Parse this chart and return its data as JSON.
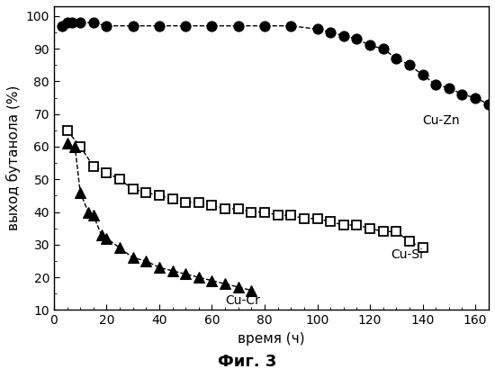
{
  "cu_zn_x": [
    3,
    5,
    7,
    10,
    15,
    20,
    30,
    40,
    50,
    60,
    70,
    80,
    90,
    100,
    105,
    110,
    115,
    120,
    125,
    130,
    135,
    140,
    145,
    150,
    155,
    160,
    165
  ],
  "cu_zn_y": [
    97,
    98,
    98,
    98,
    98,
    97,
    97,
    97,
    97,
    97,
    97,
    97,
    97,
    96,
    95,
    94,
    93,
    91,
    90,
    87,
    85,
    82,
    79,
    78,
    76,
    75,
    73
  ],
  "cu_si_x": [
    5,
    10,
    15,
    20,
    25,
    30,
    35,
    40,
    45,
    50,
    55,
    60,
    65,
    70,
    75,
    80,
    85,
    90,
    95,
    100,
    105,
    110,
    115,
    120,
    125,
    130,
    135,
    140
  ],
  "cu_si_y": [
    65,
    60,
    54,
    52,
    50,
    47,
    46,
    45,
    44,
    43,
    43,
    42,
    41,
    41,
    40,
    40,
    39,
    39,
    38,
    38,
    37,
    36,
    36,
    35,
    34,
    34,
    31,
    29
  ],
  "cu_cr_x": [
    5,
    8,
    10,
    13,
    15,
    18,
    20,
    25,
    30,
    35,
    40,
    45,
    50,
    55,
    60,
    65,
    70,
    75
  ],
  "cu_cr_y": [
    61,
    60,
    46,
    40,
    39,
    33,
    32,
    29,
    26,
    25,
    23,
    22,
    21,
    20,
    19,
    18,
    17,
    16
  ],
  "xlabel": "время (ч)",
  "ylabel": "выход бутанола (%)",
  "title": "Фиг. 3",
  "label_cu_zn": "Cu-Zn",
  "label_cu_si": "Cu-Si",
  "label_cu_cr": "Cu-Cr",
  "xlim": [
    0,
    165
  ],
  "ylim": [
    10,
    103
  ],
  "yticks": [
    10,
    20,
    30,
    40,
    50,
    60,
    70,
    80,
    90,
    100
  ],
  "xticks": [
    0,
    20,
    40,
    60,
    80,
    100,
    120,
    140,
    160
  ],
  "bg_color": "#ffffff",
  "line_color": "#000000",
  "ann_cu_zn_x": 140,
  "ann_cu_zn_y": 68,
  "ann_cu_si_x": 128,
  "ann_cu_si_y": 27,
  "ann_cu_cr_x": 65,
  "ann_cu_cr_y": 13
}
